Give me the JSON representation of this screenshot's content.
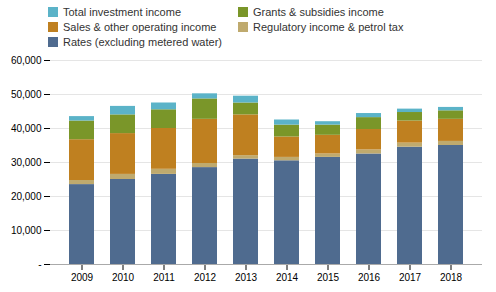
{
  "chart_data": {
    "type": "bar",
    "stacked": true,
    "grid": true,
    "categories": [
      "2009",
      "2010",
      "2011",
      "2012",
      "2013",
      "2014",
      "2015",
      "2016",
      "2017",
      "2018"
    ],
    "series": [
      {
        "name": "Rates (excluding metered water)",
        "color": "#4f6b8f",
        "values": [
          23500,
          25000,
          26500,
          28500,
          31000,
          30500,
          31500,
          32500,
          34500,
          35000
        ]
      },
      {
        "name": "Regulatory income & petrol tax",
        "color": "#bfaa6e",
        "values": [
          1200,
          1500,
          1500,
          1200,
          1000,
          1000,
          1000,
          1200,
          1200,
          1200
        ]
      },
      {
        "name": "Sales & other operating income",
        "color": "#bf8020",
        "values": [
          12000,
          12000,
          12000,
          13000,
          12000,
          6000,
          5500,
          6000,
          6500,
          6500
        ]
      },
      {
        "name": "Grants & subsidies income",
        "color": "#7a9629",
        "values": [
          5500,
          5500,
          5500,
          6000,
          3500,
          3500,
          3000,
          3500,
          2500,
          2500
        ]
      },
      {
        "name": "Total investment income",
        "color": "#5bb3c8",
        "values": [
          1300,
          2500,
          2000,
          1500,
          2000,
          1500,
          1000,
          1200,
          1000,
          1000
        ]
      }
    ],
    "ylim": [
      0,
      60000
    ],
    "yticks": [
      {
        "value": 0,
        "label": "-"
      },
      {
        "value": 10000,
        "label": "10,000"
      },
      {
        "value": 20000,
        "label": "20,000"
      },
      {
        "value": 30000,
        "label": "30,000"
      },
      {
        "value": 40000,
        "label": "40,000"
      },
      {
        "value": 50000,
        "label": "50,000"
      },
      {
        "value": 60000,
        "label": "60,000"
      }
    ]
  }
}
